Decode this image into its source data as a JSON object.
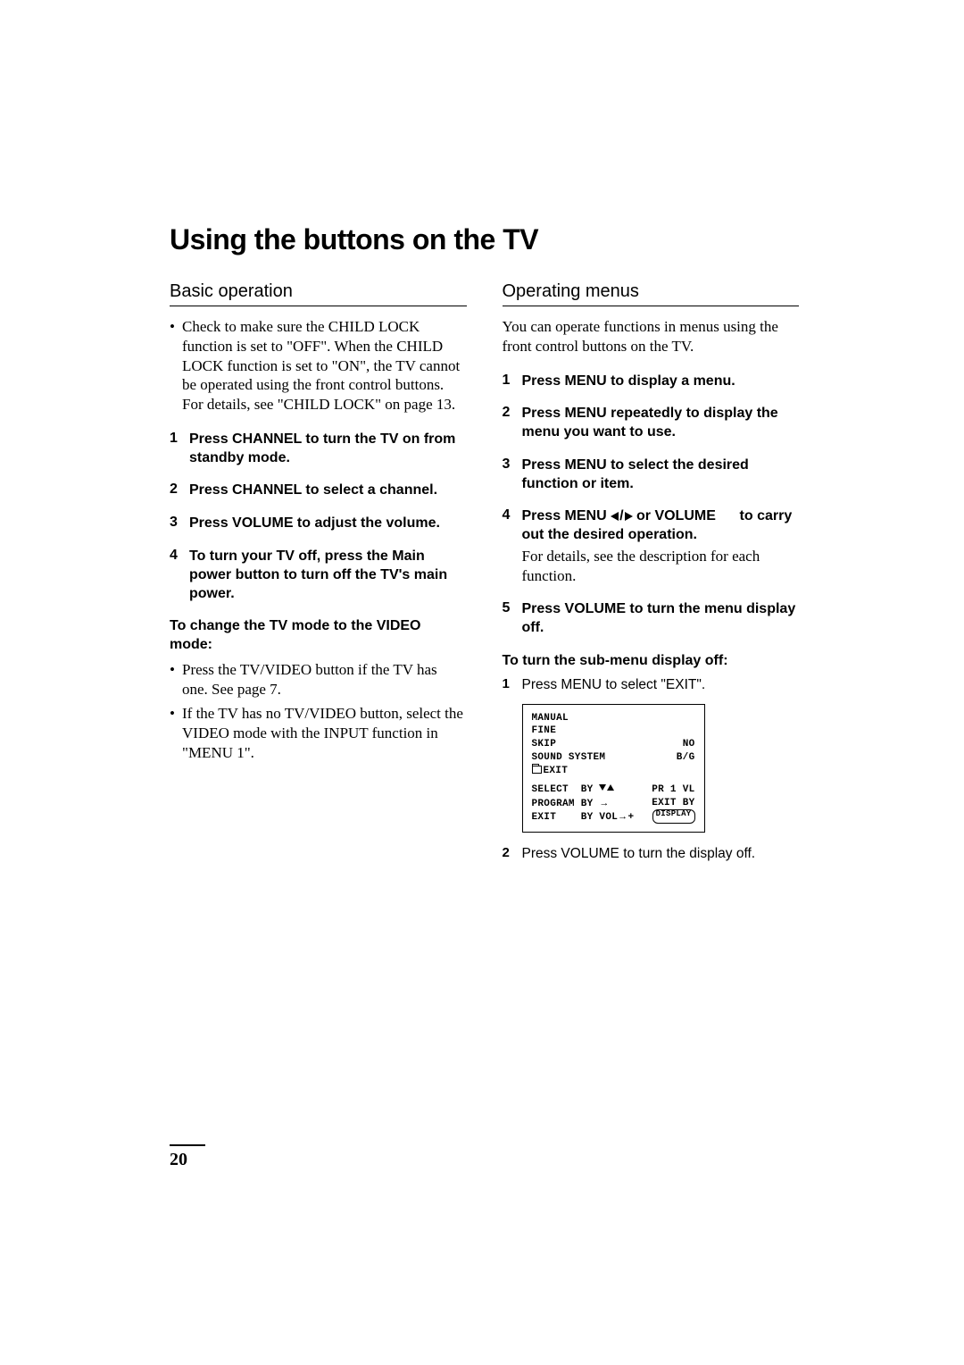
{
  "page_number": "20",
  "title": "Using the buttons on the TV",
  "left": {
    "heading": "Basic operation",
    "intro_bullet": "Check to make sure the CHILD LOCK function is set to \"OFF\". When the CHILD LOCK function is set to \"ON\", the TV cannot be operated using the front control buttons. For details, see \"CHILD LOCK\" on page 13.",
    "steps": [
      "Press CHANNEL       to turn the TV on from standby mode.",
      "Press CHANNEL       to select a channel.",
      "Press VOLUME       to adjust the volume.",
      "To turn your TV off, press the Main power button to turn off the TV's main power."
    ],
    "subhead": "To change the TV mode to the VIDEO mode:",
    "sub_bullets": [
      "Press the TV/VIDEO button if the TV has one. See page 7.",
      "If the TV has no TV/VIDEO button, select the VIDEO mode with the INPUT function in \"MENU 1\"."
    ]
  },
  "right": {
    "heading": "Operating menus",
    "intro": "You can operate functions in menus using the front control buttons on the TV.",
    "steps": [
      {
        "t": "Press MENU       to display a menu."
      },
      {
        "t": "Press MENU       repeatedly to display the menu you want to use."
      },
      {
        "t": "Press MENU       to select the desired function or item."
      },
      {
        "t": "Press MENU ◀/▶ or VOLUME       to carry out the desired operation.",
        "d": "For details, see the description for each function."
      },
      {
        "t": "Press VOLUME       to turn the menu display off."
      }
    ],
    "subhead": "To turn the sub-menu display off:",
    "substeps": [
      "Press MENU       to select \"EXIT\".",
      "Press VOLUME       to turn the display off."
    ],
    "osd": {
      "rows_top": [
        {
          "l": "MANUAL",
          "r": ""
        },
        {
          "l": "FINE",
          "r": ""
        },
        {
          "l": "SKIP",
          "r": "NO"
        },
        {
          "l": "SOUND SYSTEM",
          "r": "B/G"
        }
      ],
      "exit_label": "EXIT",
      "rows_bottom": {
        "select_l": "SELECT  BY",
        "select_r": "PR 1 VL",
        "program_l": "PROGRAM BY",
        "program_r": "EXIT BY",
        "exit_l": "EXIT    BY VOL",
        "exit_btn": "DISPLAY"
      }
    }
  }
}
